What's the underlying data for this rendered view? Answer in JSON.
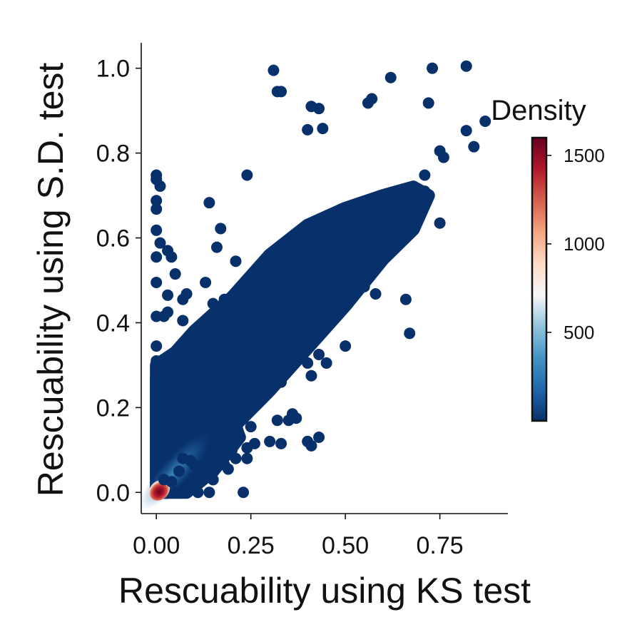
{
  "chart_data": {
    "type": "scatter",
    "xlabel": "Rescuability using KS test",
    "ylabel": "Rescuability using S.D. test",
    "xlim": [
      -0.04,
      0.93
    ],
    "ylim": [
      -0.05,
      1.06
    ],
    "x_ticks": [
      0.0,
      0.25,
      0.5,
      0.75
    ],
    "x_tick_labels": [
      "0.00",
      "0.25",
      "0.50",
      "0.75"
    ],
    "y_ticks": [
      0.0,
      0.2,
      0.4,
      0.6,
      0.8,
      1.0
    ],
    "y_tick_labels": [
      "0.0",
      "0.2",
      "0.4",
      "0.6",
      "0.8",
      "1.0"
    ],
    "grid": false,
    "point_color": "#08306b",
    "colorbar": {
      "title": "Density",
      "range": [
        0,
        1600
      ],
      "ticks": [
        500,
        1000,
        1500
      ],
      "tick_labels": [
        "500",
        "1000",
        "1500"
      ],
      "colors": [
        "#08306b",
        "#2166ac",
        "#4393c3",
        "#92c5de",
        "#f7f7f7",
        "#fddbc7",
        "#f4a582",
        "#d6604d",
        "#b2182b",
        "#67001f"
      ]
    },
    "outlier_points": [
      [
        0.31,
        0.995
      ],
      [
        0.32,
        0.945
      ],
      [
        0.33,
        0.945
      ],
      [
        0.41,
        0.91
      ],
      [
        0.43,
        0.905
      ],
      [
        0.4,
        0.855
      ],
      [
        0.44,
        0.858
      ],
      [
        0.56,
        0.918
      ],
      [
        0.57,
        0.928
      ],
      [
        0.62,
        0.978
      ],
      [
        0.73,
        1.0
      ],
      [
        0.82,
        1.005
      ],
      [
        0.72,
        0.918
      ],
      [
        0.82,
        0.853
      ],
      [
        0.84,
        0.815
      ],
      [
        0.87,
        0.875
      ],
      [
        0.75,
        0.805
      ],
      [
        0.76,
        0.79
      ],
      [
        0.0,
        0.748
      ],
      [
        0.0,
        0.738
      ],
      [
        0.01,
        0.722
      ],
      [
        0.0,
        0.688
      ],
      [
        0.0,
        0.668
      ],
      [
        0.0,
        0.618
      ],
      [
        0.01,
        0.588
      ],
      [
        0.0,
        0.555
      ],
      [
        0.0,
        0.495
      ],
      [
        0.0,
        0.415
      ],
      [
        0.0,
        0.345
      ],
      [
        0.0,
        0.31
      ],
      [
        0.0,
        0.275
      ],
      [
        0.03,
        0.57
      ],
      [
        0.04,
        0.555
      ],
      [
        0.05,
        0.515
      ],
      [
        0.03,
        0.465
      ],
      [
        0.02,
        0.415
      ],
      [
        0.03,
        0.425
      ],
      [
        0.07,
        0.405
      ],
      [
        0.07,
        0.455
      ],
      [
        0.08,
        0.468
      ],
      [
        0.16,
        0.578
      ],
      [
        0.14,
        0.683
      ],
      [
        0.17,
        0.622
      ],
      [
        0.21,
        0.545
      ],
      [
        0.24,
        0.748
      ],
      [
        0.13,
        0.495
      ],
      [
        0.1,
        0.335
      ],
      [
        0.11,
        0.315
      ],
      [
        0.15,
        0.445
      ],
      [
        0.18,
        0.455
      ],
      [
        0.67,
        0.375
      ],
      [
        0.66,
        0.455
      ],
      [
        0.58,
        0.468
      ],
      [
        0.55,
        0.485
      ],
      [
        0.5,
        0.345
      ],
      [
        0.43,
        0.325
      ],
      [
        0.45,
        0.305
      ],
      [
        0.41,
        0.275
      ],
      [
        0.33,
        0.26
      ],
      [
        0.4,
        0.305
      ],
      [
        0.69,
        0.708
      ],
      [
        0.71,
        0.748
      ],
      [
        0.75,
        0.635
      ],
      [
        0.71,
        0.71
      ],
      [
        0.36,
        0.185
      ],
      [
        0.37,
        0.175
      ],
      [
        0.4,
        0.12
      ],
      [
        0.41,
        0.11
      ],
      [
        0.43,
        0.13
      ],
      [
        0.35,
        0.17
      ],
      [
        0.3,
        0.12
      ],
      [
        0.33,
        0.115
      ],
      [
        0.32,
        0.17
      ],
      [
        0.24,
        0.08
      ],
      [
        0.24,
        0.105
      ],
      [
        0.25,
        0.155
      ],
      [
        0.26,
        0.115
      ],
      [
        0.2,
        0.1
      ],
      [
        0.07,
        0.08
      ],
      [
        0.09,
        0.075
      ],
      [
        0.1,
        0.065
      ],
      [
        0.12,
        0.045
      ],
      [
        0.15,
        0.03
      ],
      [
        0.18,
        0.065
      ],
      [
        0.19,
        0.055
      ],
      [
        0.21,
        0.08
      ],
      [
        0.23,
        0.0
      ],
      [
        0.05,
        0.0
      ],
      [
        0.08,
        0.0
      ],
      [
        0.11,
        0.0
      ],
      [
        0.14,
        0.0
      ],
      [
        0.02,
        0.03
      ],
      [
        0.04,
        0.025
      ],
      [
        0.06,
        0.05
      ],
      [
        0.03,
        0.09
      ],
      [
        0.06,
        0.12
      ],
      [
        0.02,
        0.18
      ],
      [
        0.04,
        0.22
      ],
      [
        0.05,
        0.27
      ]
    ]
  }
}
